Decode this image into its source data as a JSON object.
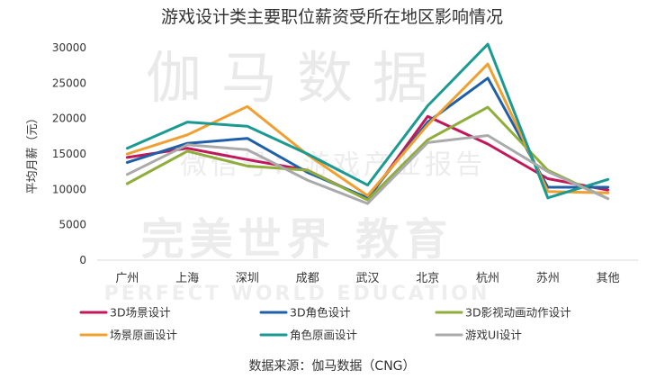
{
  "watermark": {
    "line1": "伽马数据",
    "line2": "微信号：游戏产业报告",
    "line3": "完美世界 教育",
    "line4": "PERFECT WORLD EDUCATION"
  },
  "chart_data": {
    "type": "line",
    "title": "游戏设计类主要职位薪资受所在地区影响情况",
    "ylabel": "平均月薪（元）",
    "xlabel": "",
    "ylim": [
      0,
      30000
    ],
    "yticks": [
      0,
      5000,
      10000,
      15000,
      20000,
      25000,
      30000
    ],
    "categories": [
      "广州",
      "上海",
      "深圳",
      "成都",
      "武汉",
      "北京",
      "杭州",
      "苏州",
      "其他"
    ],
    "grid": false,
    "legend_position": "bottom",
    "series": [
      {
        "name": "3D场景设计",
        "color": "#c0185a",
        "values": [
          14500,
          15800,
          14200,
          12700,
          8600,
          20300,
          16400,
          11500,
          9900
        ]
      },
      {
        "name": "3D角色设计",
        "color": "#1f5fa8",
        "values": [
          13800,
          16500,
          17200,
          12400,
          8800,
          19500,
          25700,
          10300,
          10300
        ]
      },
      {
        "name": "3D影视动画动作设计",
        "color": "#8fad3a",
        "values": [
          10800,
          15400,
          13300,
          12700,
          8500,
          17000,
          21600,
          12700,
          8700
        ]
      },
      {
        "name": "场景原画设计",
        "color": "#f0a030",
        "values": [
          15000,
          17700,
          21700,
          14900,
          9100,
          19100,
          27700,
          9700,
          9500
        ]
      },
      {
        "name": "角色原画设计",
        "color": "#1a9a90",
        "values": [
          15800,
          19500,
          18900,
          15000,
          10600,
          21800,
          30500,
          8800,
          11400
        ]
      },
      {
        "name": "游戏UI设计",
        "color": "#aaaaaa",
        "values": [
          12100,
          16300,
          15600,
          11300,
          8000,
          16600,
          17600,
          12500,
          8700
        ]
      }
    ],
    "source": "数据来源：伽马数据（CNG）"
  }
}
